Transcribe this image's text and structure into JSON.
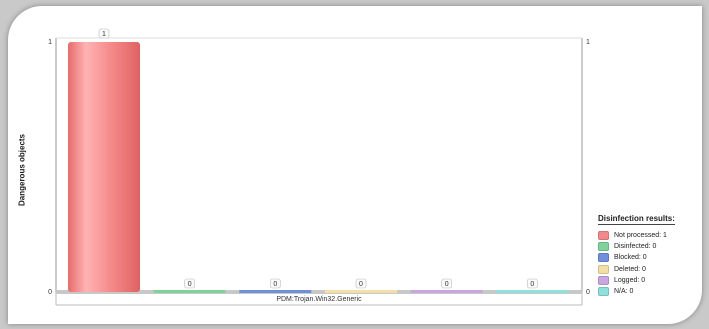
{
  "chart_data": {
    "type": "bar",
    "categories": [
      "PDM:Trojan.Win32.Generic"
    ],
    "ylabel": "Dangerous objects",
    "ylim": [
      0,
      1
    ],
    "y_ticks": [
      "0",
      "1"
    ],
    "right_ticks": [
      "0",
      "1"
    ],
    "series": [
      {
        "name": "Not processed",
        "values": [
          1
        ],
        "color": "#f28a8a"
      },
      {
        "name": "Disinfected",
        "values": [
          0
        ],
        "color": "#7fd39a"
      },
      {
        "name": "Blocked",
        "values": [
          0
        ],
        "color": "#6f8fdc"
      },
      {
        "name": "Deleted",
        "values": [
          0
        ],
        "color": "#f2e0a6"
      },
      {
        "name": "Logged",
        "values": [
          0
        ],
        "color": "#c9a6e0"
      },
      {
        "name": "N/A",
        "values": [
          0
        ],
        "color": "#8fe0dc"
      }
    ],
    "legend_placement": "bottom-right"
  },
  "legend": {
    "title": "Disinfection results:",
    "items": [
      {
        "label": "Not processed: 1",
        "color": "#f28a8a"
      },
      {
        "label": "Disinfected: 0",
        "color": "#7fd39a"
      },
      {
        "label": "Blocked: 0",
        "color": "#6f8fdc"
      },
      {
        "label": "Deleted: 0",
        "color": "#f2e0a6"
      },
      {
        "label": "Logged: 0",
        "color": "#c9a6e0"
      },
      {
        "label": "N/A: 0",
        "color": "#8fe0dc"
      }
    ]
  }
}
